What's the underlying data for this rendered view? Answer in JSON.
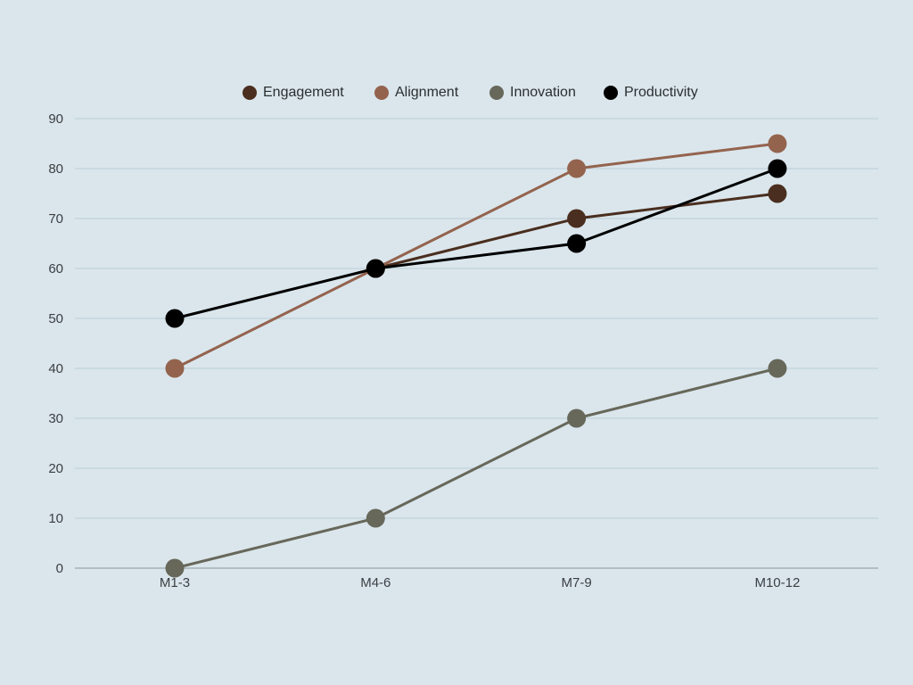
{
  "chart_data": {
    "type": "line",
    "categories": [
      "M1-3",
      "M4-6",
      "M7-9",
      "M10-12"
    ],
    "series": [
      {
        "name": "Engagement",
        "values": [
          null,
          60,
          70,
          75
        ],
        "color": "#4a2e1f"
      },
      {
        "name": "Alignment",
        "values": [
          40,
          60,
          80,
          85
        ],
        "color": "#94634e"
      },
      {
        "name": "Innovation",
        "values": [
          0,
          10,
          30,
          40
        ],
        "color": "#67685a"
      },
      {
        "name": "Productivity",
        "values": [
          50,
          60,
          65,
          80
        ],
        "color": "#000000"
      }
    ],
    "ylim": [
      0,
      90
    ],
    "yticks": [
      0,
      10,
      20,
      30,
      40,
      50,
      60,
      70,
      80,
      90
    ],
    "grid": true,
    "legend_position": "top-center",
    "background_color": "#dae6ec"
  }
}
